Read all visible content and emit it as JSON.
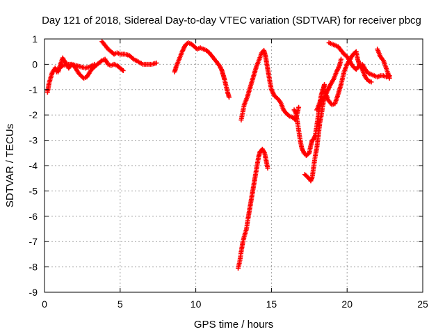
{
  "chart_data": {
    "type": "scatter",
    "title": "Day 121 of 2018, Sidereal Day-to-day VTEC variation (SDTVAR) for receiver pbcg",
    "xlabel": "GPS time / hours",
    "ylabel": "SDTVAR / TECUs",
    "xlim": [
      0,
      25
    ],
    "ylim": [
      -9,
      1
    ],
    "xticks": [
      0,
      5,
      10,
      15,
      20,
      25
    ],
    "yticks": [
      1,
      0,
      -1,
      -2,
      -3,
      -4,
      -5,
      -6,
      -7,
      -8,
      -9
    ],
    "grid": true,
    "marker": "plus",
    "color": "#ff0000",
    "segments": [
      [
        [
          0.2,
          -1.1
        ],
        [
          0.3,
          -0.75
        ],
        [
          0.5,
          -0.35
        ],
        [
          0.7,
          -0.15
        ],
        [
          0.9,
          -0.3
        ],
        [
          1.0,
          -0.1
        ],
        [
          1.2,
          0.25
        ],
        [
          1.4,
          0.05
        ],
        [
          1.6,
          -0.15
        ],
        [
          1.8,
          0.0
        ],
        [
          2.0,
          -0.1
        ],
        [
          2.2,
          -0.3
        ],
        [
          2.4,
          -0.45
        ],
        [
          2.6,
          -0.55
        ],
        [
          2.8,
          -0.5
        ],
        [
          3.0,
          -0.3
        ],
        [
          3.2,
          -0.15
        ],
        [
          3.4,
          -0.05
        ],
        [
          3.6,
          0.05
        ],
        [
          3.8,
          0.15
        ],
        [
          4.0,
          0.2
        ],
        [
          4.2,
          0.0
        ],
        [
          4.4,
          -0.05
        ],
        [
          4.6,
          0.0
        ],
        [
          4.8,
          -0.05
        ],
        [
          5.0,
          -0.15
        ],
        [
          5.2,
          -0.25
        ]
      ],
      [
        [
          0.8,
          -0.3
        ],
        [
          1.0,
          -0.15
        ],
        [
          1.2,
          -0.05
        ],
        [
          1.5,
          0.0
        ],
        [
          1.8,
          0.0
        ],
        [
          2.1,
          -0.05
        ],
        [
          2.4,
          -0.1
        ],
        [
          2.7,
          -0.15
        ],
        [
          3.0,
          -0.1
        ],
        [
          3.3,
          0.0
        ]
      ],
      [
        [
          3.8,
          0.9
        ],
        [
          4.0,
          0.75
        ],
        [
          4.2,
          0.6
        ],
        [
          4.4,
          0.5
        ],
        [
          4.6,
          0.4
        ],
        [
          4.8,
          0.45
        ],
        [
          5.0,
          0.4
        ],
        [
          5.3,
          0.4
        ],
        [
          5.6,
          0.35
        ],
        [
          5.9,
          0.2
        ],
        [
          6.2,
          0.1
        ],
        [
          6.5,
          0.0
        ],
        [
          6.8,
          0.0
        ],
        [
          7.1,
          0.0
        ],
        [
          7.4,
          0.05
        ]
      ],
      [
        [
          8.6,
          -0.3
        ],
        [
          8.7,
          -0.1
        ],
        [
          8.9,
          0.2
        ],
        [
          9.1,
          0.5
        ],
        [
          9.3,
          0.75
        ],
        [
          9.5,
          0.85
        ],
        [
          9.7,
          0.8
        ],
        [
          9.9,
          0.7
        ],
        [
          10.1,
          0.6
        ],
        [
          10.3,
          0.65
        ],
        [
          10.5,
          0.6
        ],
        [
          10.7,
          0.55
        ],
        [
          10.9,
          0.45
        ],
        [
          11.1,
          0.3
        ],
        [
          11.3,
          0.15
        ],
        [
          11.5,
          0.0
        ],
        [
          11.7,
          -0.2
        ],
        [
          11.8,
          -0.4
        ],
        [
          11.9,
          -0.6
        ],
        [
          12.0,
          -0.85
        ],
        [
          12.1,
          -1.1
        ],
        [
          12.2,
          -1.3
        ]
      ],
      [
        [
          12.8,
          -8.05
        ],
        [
          12.9,
          -7.8
        ],
        [
          13.0,
          -7.4
        ],
        [
          13.1,
          -7.05
        ],
        [
          13.2,
          -6.8
        ],
        [
          13.35,
          -6.5
        ],
        [
          13.45,
          -6.1
        ],
        [
          13.55,
          -5.75
        ],
        [
          13.65,
          -5.4
        ],
        [
          13.75,
          -5.05
        ],
        [
          13.85,
          -4.7
        ],
        [
          13.95,
          -4.35
        ],
        [
          14.05,
          -4.0
        ],
        [
          14.15,
          -3.65
        ],
        [
          14.25,
          -3.45
        ],
        [
          14.4,
          -3.35
        ],
        [
          14.55,
          -3.5
        ],
        [
          14.65,
          -3.8
        ],
        [
          14.75,
          -4.1
        ]
      ],
      [
        [
          13.0,
          -2.2
        ],
        [
          13.2,
          -1.6
        ],
        [
          13.4,
          -1.3
        ],
        [
          13.6,
          -0.9
        ],
        [
          13.8,
          -0.5
        ],
        [
          14.0,
          -0.1
        ],
        [
          14.2,
          0.2
        ],
        [
          14.35,
          0.45
        ],
        [
          14.5,
          0.55
        ],
        [
          14.6,
          0.35
        ],
        [
          14.7,
          0.0
        ],
        [
          14.8,
          -0.35
        ],
        [
          14.9,
          -0.7
        ],
        [
          15.0,
          -1.0
        ],
        [
          15.2,
          -1.25
        ],
        [
          15.4,
          -1.35
        ],
        [
          15.6,
          -1.5
        ],
        [
          15.8,
          -1.8
        ],
        [
          16.0,
          -1.95
        ],
        [
          16.2,
          -2.05
        ],
        [
          16.4,
          -2.1
        ],
        [
          16.6,
          -2.2
        ],
        [
          16.8,
          -1.7
        ]
      ],
      [
        [
          16.5,
          -1.8
        ],
        [
          16.6,
          -1.9
        ],
        [
          16.7,
          -2.2
        ],
        [
          16.8,
          -2.6
        ],
        [
          16.9,
          -3.0
        ],
        [
          17.0,
          -3.3
        ],
        [
          17.15,
          -3.5
        ],
        [
          17.3,
          -3.6
        ],
        [
          17.5,
          -3.5
        ],
        [
          17.6,
          -3.2
        ],
        [
          17.7,
          -3.0
        ],
        [
          17.8,
          -2.95
        ],
        [
          17.9,
          -2.8
        ],
        [
          18.0,
          -2.4
        ],
        [
          18.1,
          -2.0
        ],
        [
          18.2,
          -1.5
        ],
        [
          18.3,
          -1.2
        ],
        [
          18.4,
          -1.0
        ],
        [
          18.5,
          -0.8
        ],
        [
          18.6,
          -1.2
        ],
        [
          18.7,
          -1.3
        ]
      ],
      [
        [
          17.2,
          -4.35
        ],
        [
          17.4,
          -4.45
        ],
        [
          17.6,
          -4.6
        ],
        [
          17.7,
          -4.45
        ],
        [
          17.8,
          -4.0
        ],
        [
          17.9,
          -3.6
        ],
        [
          18.0,
          -3.3
        ],
        [
          18.1,
          -2.8
        ],
        [
          18.2,
          -2.3
        ],
        [
          18.3,
          -2.0
        ],
        [
          18.4,
          -1.6
        ],
        [
          18.5,
          -1.3
        ],
        [
          18.7,
          -1.05
        ],
        [
          18.9,
          -0.8
        ],
        [
          19.1,
          -0.6
        ],
        [
          19.3,
          -0.3
        ],
        [
          19.5,
          -0.05
        ],
        [
          19.6,
          0.2
        ]
      ],
      [
        [
          18.0,
          -1.8
        ],
        [
          18.2,
          -1.5
        ],
        [
          18.4,
          -1.35
        ],
        [
          18.6,
          -1.3
        ],
        [
          18.8,
          -1.45
        ],
        [
          19.0,
          -1.6
        ],
        [
          19.2,
          -1.55
        ],
        [
          19.4,
          -1.2
        ],
        [
          19.6,
          -0.8
        ],
        [
          19.8,
          -0.3
        ],
        [
          20.0,
          0.0
        ],
        [
          20.2,
          0.2
        ],
        [
          20.4,
          0.4
        ],
        [
          20.6,
          0.5
        ],
        [
          20.7,
          0.2
        ],
        [
          20.8,
          0.0
        ],
        [
          21.0,
          -0.2
        ],
        [
          21.2,
          -0.5
        ],
        [
          21.4,
          -0.65
        ],
        [
          21.6,
          -0.7
        ]
      ],
      [
        [
          18.8,
          0.85
        ],
        [
          19.0,
          0.8
        ],
        [
          19.2,
          0.75
        ],
        [
          19.4,
          0.7
        ],
        [
          19.6,
          0.55
        ],
        [
          19.8,
          0.4
        ],
        [
          20.0,
          0.3
        ],
        [
          20.2,
          0.1
        ],
        [
          20.4,
          -0.1
        ],
        [
          20.6,
          -0.2
        ],
        [
          20.8,
          -0.05
        ],
        [
          21.0,
          0.0
        ],
        [
          21.2,
          -0.2
        ],
        [
          21.4,
          -0.35
        ],
        [
          21.6,
          -0.4
        ],
        [
          21.8,
          -0.45
        ],
        [
          22.0,
          -0.5
        ],
        [
          22.2,
          -0.45
        ],
        [
          22.4,
          -0.45
        ],
        [
          22.6,
          -0.5
        ],
        [
          22.8,
          -0.45
        ]
      ],
      [
        [
          22.0,
          0.6
        ],
        [
          22.2,
          0.3
        ],
        [
          22.4,
          0.15
        ],
        [
          22.55,
          -0.1
        ],
        [
          22.7,
          -0.35
        ],
        [
          22.8,
          -0.55
        ]
      ]
    ]
  }
}
